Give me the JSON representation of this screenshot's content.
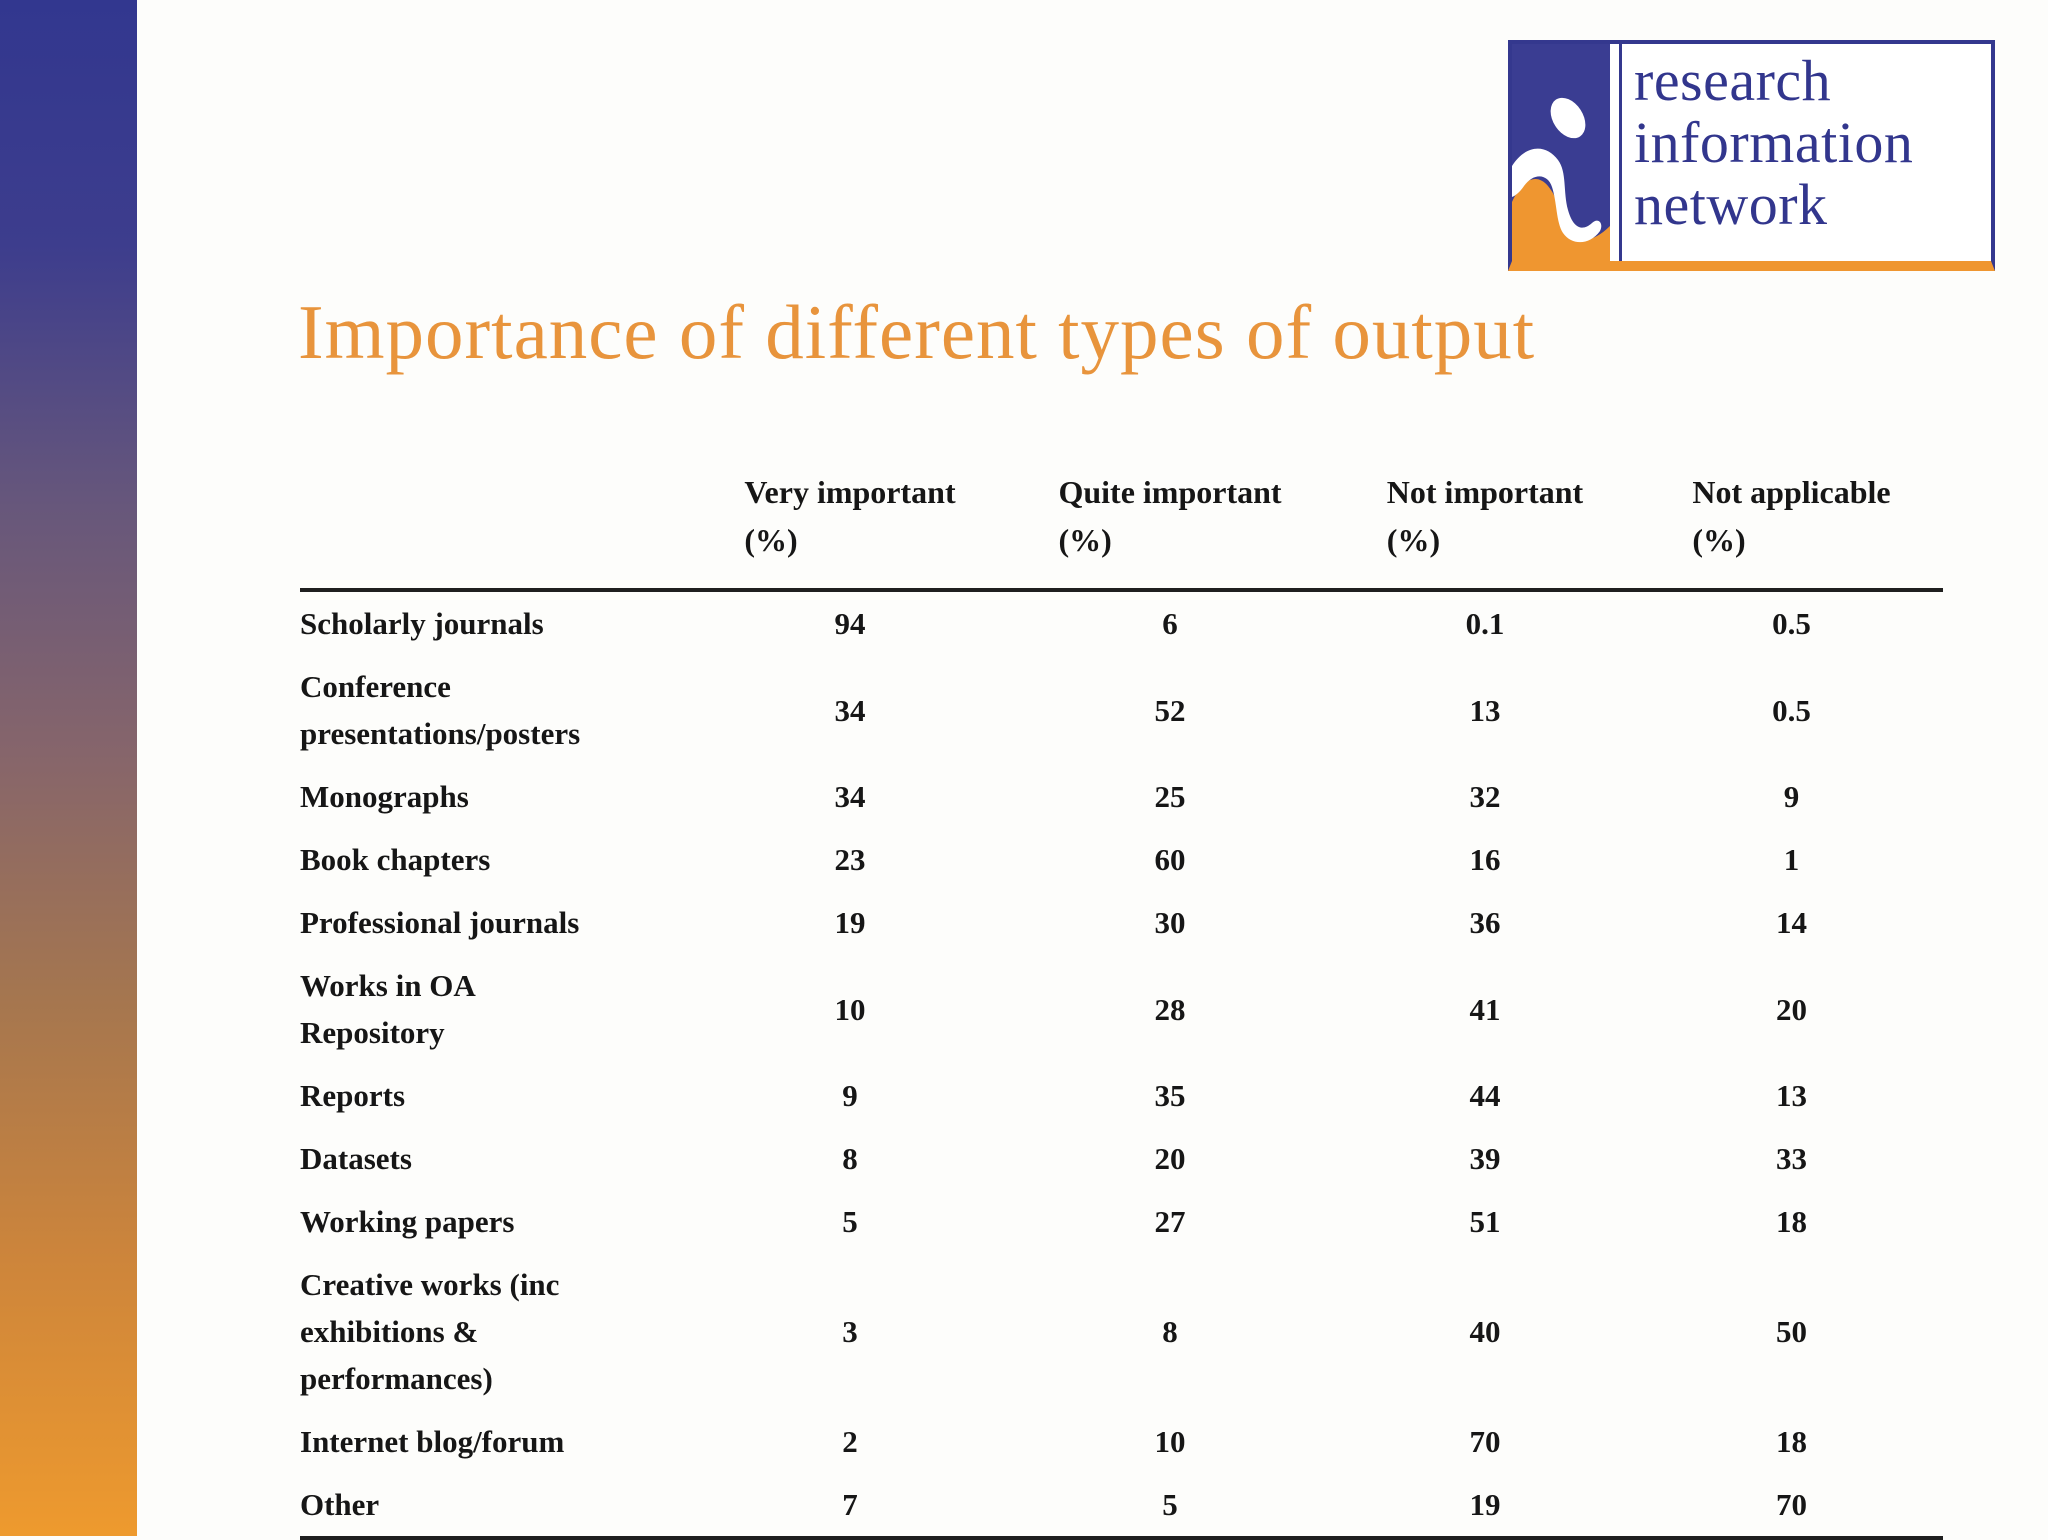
{
  "page": {
    "background": "#fdfdfb"
  },
  "sidebar": {
    "gradient_top": "#32378f",
    "gradient_bottom": "#ee9a2e"
  },
  "logo": {
    "line1": "research",
    "line2": "information",
    "line3": "network",
    "text_color": "#32368d",
    "border_blue": "#34388e",
    "accent_orange": "#ef9630",
    "icon": "rin-figure-icon"
  },
  "title": {
    "text": "Importance of different types of output",
    "color": "#e8943c"
  },
  "chart_data": {
    "type": "table",
    "title": "Importance of different types of output",
    "grid": "horizontal rules top and bottom only",
    "column_headers": [
      {
        "label": "Very important",
        "unit": "(%)"
      },
      {
        "label": "Quite important",
        "unit": "(%)"
      },
      {
        "label": "Not important",
        "unit": "(%)"
      },
      {
        "label": "Not applicable",
        "unit": "(%)"
      }
    ],
    "rows": [
      {
        "label": "Scholarly journals",
        "values": [
          "94",
          "6",
          "0.1",
          "0.5"
        ]
      },
      {
        "label": "Conference\npresentations/posters",
        "values": [
          "34",
          "52",
          "13",
          "0.5"
        ]
      },
      {
        "label": "Monographs",
        "values": [
          "34",
          "25",
          "32",
          "9"
        ]
      },
      {
        "label": "Book chapters",
        "values": [
          "23",
          "60",
          "16",
          "1"
        ]
      },
      {
        "label": "Professional journals",
        "values": [
          "19",
          "30",
          "36",
          "14"
        ]
      },
      {
        "label": "Works in OA\nRepository",
        "values": [
          "10",
          "28",
          "41",
          "20"
        ]
      },
      {
        "label": "Reports",
        "values": [
          "9",
          "35",
          "44",
          "13"
        ]
      },
      {
        "label": "Datasets",
        "values": [
          "8",
          "20",
          "39",
          "33"
        ]
      },
      {
        "label": "Working papers",
        "values": [
          "5",
          "27",
          "51",
          "18"
        ]
      },
      {
        "label": "Creative works (inc\nexhibitions &\nperformances)",
        "values": [
          "3",
          "8",
          "40",
          "50"
        ]
      },
      {
        "label": "Internet blog/forum",
        "values": [
          "2",
          "10",
          "70",
          "18"
        ]
      },
      {
        "label": "Other",
        "values": [
          "7",
          "5",
          "19",
          "70"
        ]
      }
    ]
  }
}
